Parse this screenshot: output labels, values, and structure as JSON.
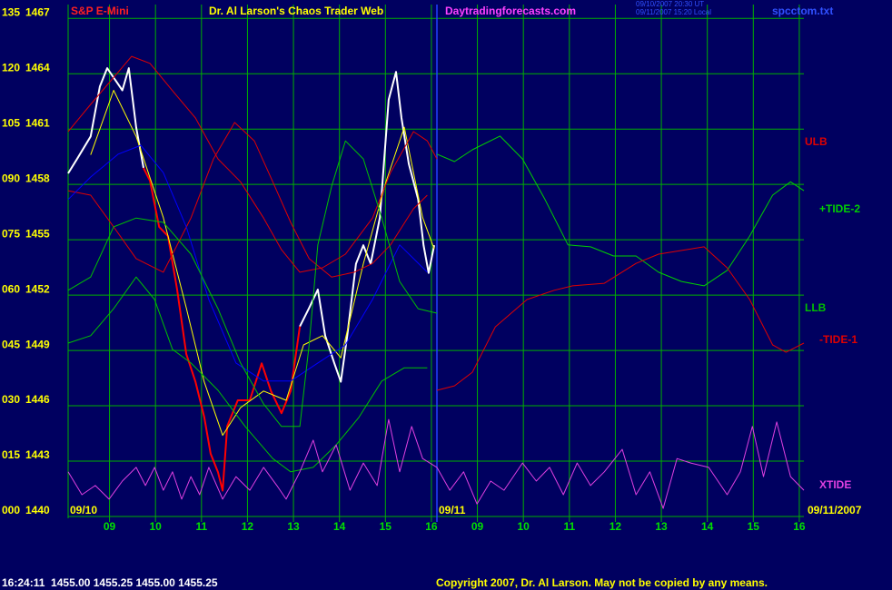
{
  "chart_data": {
    "type": "line",
    "title": "Dr. Al Larson's Chaos Trader Web",
    "instrument": "S&P E-Mini",
    "website": "Daytradingforecasts.com",
    "timestamp_lines": [
      "09/10/2007 20:30 UT",
      "09/11/2007 15:20 Local"
    ],
    "file": "spcctom.txt",
    "date_labels": [
      "09/10",
      "09/11",
      "09/11/2007"
    ],
    "quote": "16:24:11  1455.00 1455.25 1455.00 1455.25",
    "copyright": "Copyright 2007, Dr. Al Larson. May not be copied by any means.",
    "grid": true,
    "xlim": [
      0.1,
      16.1
    ],
    "xticks": [
      {
        "value": 1,
        "label": "09"
      },
      {
        "value": 2,
        "label": "10"
      },
      {
        "value": 3,
        "label": "11"
      },
      {
        "value": 4,
        "label": "12"
      },
      {
        "value": 5,
        "label": "13"
      },
      {
        "value": 6,
        "label": "14"
      },
      {
        "value": 7,
        "label": "15"
      },
      {
        "value": 8,
        "label": "16"
      },
      {
        "value": 9,
        "label": "09"
      },
      {
        "value": 10,
        "label": "10"
      },
      {
        "value": 11,
        "label": "11"
      },
      {
        "value": 12,
        "label": "12"
      },
      {
        "value": 13,
        "label": "13"
      },
      {
        "value": 14,
        "label": "14"
      },
      {
        "value": 15,
        "label": "15"
      },
      {
        "value": 16,
        "label": "16"
      }
    ],
    "divider": 8.12,
    "ylim": [
      1440,
      1467.75
    ],
    "yticks": [
      1467,
      1464,
      1461,
      1458,
      1455,
      1452,
      1449,
      1446,
      1443,
      1440
    ],
    "y2lim": [
      0,
      138.75
    ],
    "y2ticks": [
      135,
      120,
      105,
      {
        "value": 90,
        "label": "090"
      },
      {
        "value": 75,
        "label": "075"
      },
      {
        "value": 60,
        "label": "060"
      },
      {
        "value": 45,
        "label": "045"
      },
      {
        "value": 30,
        "label": "030"
      },
      {
        "value": 15,
        "label": "015"
      },
      {
        "value": 0,
        "label": "000"
      }
    ],
    "series": [
      {
        "color": "#ffffff",
        "axis": "y",
        "x": [
          0.1,
          0.3,
          0.59,
          0.79,
          0.95,
          1.28,
          1.42,
          1.58,
          1.74,
          2.0,
          5.14,
          5.34,
          5.53,
          5.69,
          5.89,
          6.03,
          6.17,
          6.36,
          6.52,
          6.68,
          6.88,
          7.07,
          7.23,
          7.35,
          7.51,
          7.71,
          7.83,
          7.94,
          8.06
        ],
        "values": [
          1458.6,
          1459.4,
          1460.6,
          1463.3,
          1464.3,
          1463.1,
          1464.3,
          1461.1,
          1458.9,
          null,
          1450.3,
          1451.3,
          1452.3,
          1449.8,
          1448.3,
          1447.3,
          1449.8,
          1453.7,
          1454.7,
          1453.7,
          1456.2,
          1462.6,
          1464.1,
          1461.6,
          1459.1,
          1457.2,
          1454.7,
          1453.2,
          1454.7
        ]
      },
      {
        "color": "#ff0000",
        "axis": "y",
        "x": [
          1.74,
          1.88,
          2.08,
          2.27,
          2.47,
          2.67,
          2.87,
          3.06,
          3.2,
          3.36,
          3.46,
          3.56,
          3.79,
          4.05,
          4.31,
          4.51,
          4.74,
          4.94,
          5.14
        ],
        "values": [
          1458.9,
          1458.2,
          1455.7,
          1455.2,
          1452.3,
          1448.8,
          1447.3,
          1445.4,
          1443.4,
          1442.4,
          1441.4,
          1444.9,
          1446.3,
          1446.3,
          1448.3,
          1446.8,
          1445.6,
          1446.8,
          1450.3
        ]
      },
      {
        "color": "#ffff00",
        "axis": "y",
        "x": [
          0.59,
          1.09,
          1.58,
          2.17,
          2.67,
          3.06,
          3.46,
          3.85,
          4.35,
          4.84,
          5.22,
          5.63,
          6.03,
          6.52,
          7.02,
          7.41,
          7.81,
          8.06
        ],
        "values": [
          1459.6,
          1463.1,
          1460.6,
          1456.2,
          1451.3,
          1447.3,
          1444.4,
          1445.9,
          1446.8,
          1446.3,
          1449.3,
          1449.8,
          1448.6,
          1453.7,
          1458.2,
          1461.1,
          1456.2,
          1454.5
        ]
      },
      {
        "name": "ULB",
        "color": "#e00000",
        "axis": "y2",
        "x": [
          0.1,
          0.59,
          1.48,
          1.88,
          2.37,
          2.87,
          3.36,
          3.85,
          4.35,
          4.74,
          5.14,
          5.63,
          6.13,
          6.72,
          7.11,
          7.61,
          7.91,
          8.12
        ],
        "values": [
          104.3,
          111.7,
          124.7,
          122.8,
          115.4,
          108,
          96.9,
          90.7,
          80.9,
          72.3,
          66.2,
          67.4,
          71.1,
          80.9,
          93.2,
          104.3,
          101.8,
          96.9
        ]
      },
      {
        "color": "#e00000",
        "axis": "y2",
        "x": [
          0.1,
          0.59,
          1.09,
          1.58,
          2.17,
          2.77,
          3.26,
          3.72,
          4.15,
          4.55,
          4.94,
          5.34,
          5.83,
          6.32,
          6.72,
          7.11,
          7.61,
          7.91
        ],
        "values": [
          88.3,
          87.1,
          78.5,
          69.9,
          66.2,
          80.9,
          96.9,
          106.8,
          101.8,
          90.7,
          79.7,
          69.9,
          64.9,
          66.2,
          68.6,
          73.6,
          83.4,
          87.1
        ]
      },
      {
        "color": "#0000ff",
        "axis": "y2",
        "x": [
          0.1,
          0.59,
          1.19,
          1.68,
          2.17,
          2.67,
          3.16,
          3.75,
          4.35,
          4.94,
          5.53,
          6.13,
          6.72,
          7.31,
          7.91
        ],
        "values": [
          85.9,
          92,
          98.2,
          100.6,
          93.2,
          78.5,
          58.8,
          41.6,
          36.7,
          36.7,
          41.6,
          46.5,
          58.8,
          73.6,
          66.2
        ]
      },
      {
        "color": "#00c000",
        "axis": "y2",
        "x": [
          0.1,
          0.59,
          1.09,
          1.58,
          2.17,
          2.77,
          3.36,
          3.85,
          4.35,
          4.74,
          5.14,
          5.34,
          5.53,
          5.83,
          6.13,
          6.52,
          6.92,
          7.31,
          7.71,
          8.12
        ],
        "values": [
          61.3,
          64.9,
          78.5,
          80.9,
          79.7,
          71.1,
          56.3,
          41.6,
          30.5,
          24.4,
          24.4,
          46.5,
          73.6,
          89.5,
          101.8,
          96.9,
          80.9,
          63.7,
          56.3,
          55.1
        ]
      },
      {
        "name": "LLB",
        "color": "#00c000",
        "axis": "y2",
        "x": [
          0.1,
          0.59,
          1.09,
          1.58,
          1.98,
          2.37,
          2.77,
          3.36,
          3.95,
          4.55,
          4.94,
          5.43,
          5.93,
          6.42,
          6.92,
          7.41,
          7.91
        ],
        "values": [
          47,
          49,
          56.3,
          64.9,
          58.8,
          45.3,
          41.6,
          34.2,
          24.4,
          15.7,
          12.1,
          13.3,
          19.4,
          26.8,
          36.7,
          40.3,
          40.3
        ]
      },
      {
        "name": "+TIDE-2",
        "color": "#00d000",
        "axis": "y2",
        "x": [
          8.12,
          8.5,
          8.89,
          9.49,
          9.98,
          10.47,
          10.97,
          11.46,
          11.96,
          12.45,
          12.94,
          13.44,
          13.93,
          14.43,
          14.92,
          15.42,
          15.81,
          16.1
        ],
        "values": [
          98.2,
          96.2,
          99.4,
          103.1,
          96.9,
          85.9,
          73.6,
          73.1,
          70.6,
          70.6,
          66.2,
          63.7,
          62.5,
          66.7,
          76,
          87.1,
          90.7,
          88.3
        ]
      },
      {
        "name": "-TIDE-1",
        "color": "#e00000",
        "axis": "y2",
        "x": [
          8.12,
          8.5,
          8.89,
          9.39,
          10.08,
          10.67,
          11.07,
          11.76,
          12.45,
          12.94,
          13.93,
          14.43,
          14.92,
          15.42,
          15.71,
          16.1
        ],
        "values": [
          34.2,
          35.4,
          39.1,
          51.4,
          58.8,
          61.3,
          62.5,
          63.2,
          68.6,
          71.1,
          73.1,
          67.4,
          58.8,
          46.5,
          44.5,
          47
        ]
      },
      {
        "name": "XTIDE",
        "color": "#e040e0",
        "axis": "y2",
        "x": [
          0.1,
          0.4,
          0.69,
          0.99,
          1.28,
          1.58,
          1.78,
          1.98,
          2.17,
          2.37,
          2.57,
          2.77,
          2.96,
          3.16,
          3.46,
          3.75,
          4.05,
          4.35,
          4.64,
          4.84,
          5.14,
          5.43,
          5.63,
          5.93,
          6.23,
          6.52,
          6.82,
          7.07,
          7.31,
          7.57,
          7.81,
          8.12,
          8.4,
          8.7,
          8.99,
          9.29,
          9.58,
          9.98,
          10.28,
          10.57,
          10.87,
          11.17,
          11.46,
          11.76,
          12.15,
          12.45,
          12.75,
          13.04,
          13.34,
          13.64,
          14.03,
          14.43,
          14.72,
          14.98,
          15.22,
          15.51,
          15.81,
          16.1
        ],
        "values": [
          12.1,
          5.9,
          8.4,
          4.7,
          9.6,
          13.3,
          8.4,
          13.3,
          7.1,
          12.1,
          4.7,
          10.8,
          5.9,
          13.3,
          4.7,
          10.8,
          7.1,
          13.3,
          8.4,
          4.7,
          12.1,
          20.7,
          12.1,
          19.4,
          7.1,
          14.5,
          8.4,
          26.3,
          12.1,
          24.4,
          15.7,
          13.3,
          7.1,
          12.1,
          3.4,
          9.6,
          7.1,
          14.5,
          9.6,
          13.3,
          5.9,
          14.5,
          8.4,
          12.1,
          18.2,
          5.9,
          12.1,
          2.2,
          15.7,
          14.5,
          13.3,
          5.9,
          12.1,
          24.4,
          10.8,
          25.6,
          10.8,
          7.1
        ]
      }
    ]
  }
}
